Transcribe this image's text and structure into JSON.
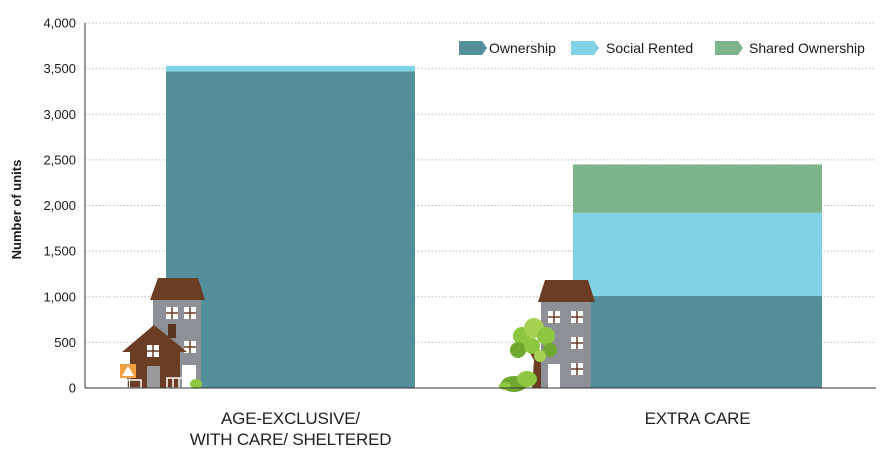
{
  "chart_data": {
    "type": "bar",
    "stacked": true,
    "ylabel": "Number of units",
    "ylim": [
      0,
      4000
    ],
    "yticks": [
      0,
      500,
      1000,
      1500,
      2000,
      2500,
      3000,
      3500,
      4000
    ],
    "ytick_labels": [
      "0",
      "500",
      "1,000",
      "1,500",
      "2,000",
      "2,500",
      "3,000",
      "3,500",
      "4,000"
    ],
    "categories": [
      [
        "AGE-EXCLUSIVE/",
        "WITH CARE/ SHELTERED"
      ],
      [
        "EXTRA CARE"
      ]
    ],
    "series": [
      {
        "name": "Ownership",
        "color": "#548e9b",
        "values": [
          3470,
          1010
        ]
      },
      {
        "name": "Social Rented",
        "color": "#7fd3e5",
        "values": [
          60,
          910
        ]
      },
      {
        "name": "Shared Ownership",
        "color": "#7db38a",
        "values": [
          0,
          530
        ]
      }
    ],
    "grid": true,
    "legend_position": "top-right"
  },
  "icons": {
    "left": "houses-icon",
    "right": "house-with-tree-icon"
  }
}
